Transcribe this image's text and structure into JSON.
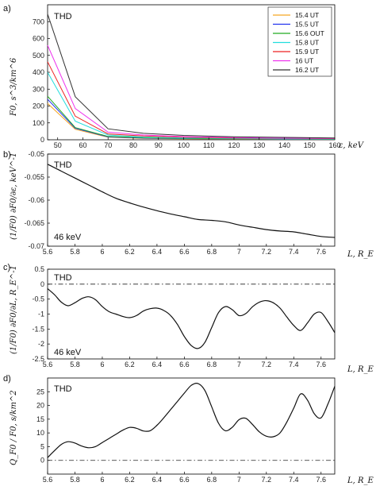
{
  "chart_data": [
    {
      "panel_label": "a)",
      "type": "line",
      "annotation": "THD",
      "xlabel": "ε, keV",
      "ylabel": "F0, s^3/km^6",
      "xlim": [
        46,
        160
      ],
      "ylim": [
        0,
        800
      ],
      "x_ticks": [
        50,
        60,
        70,
        80,
        90,
        100,
        110,
        120,
        130,
        140,
        150,
        160
      ],
      "y_ticks": [
        0,
        100,
        200,
        300,
        400,
        500,
        600,
        700
      ],
      "x": [
        46,
        57,
        70,
        84,
        100,
        120,
        140,
        160
      ],
      "series": [
        {
          "name": "15.4 UT",
          "color": "#f5a623",
          "values": [
            215,
            62,
            15,
            8,
            5,
            4,
            3,
            3
          ]
        },
        {
          "name": "15.5 UT",
          "color": "#2233ee",
          "values": [
            240,
            68,
            17,
            10,
            7,
            5,
            4,
            4
          ]
        },
        {
          "name": "15.6 OUT",
          "color": "#22aa22",
          "values": [
            258,
            72,
            20,
            12,
            8,
            6,
            5,
            4
          ]
        },
        {
          "name": "15.8 UT",
          "color": "#22dddd",
          "values": [
            400,
            110,
            28,
            16,
            11,
            8,
            6,
            5
          ]
        },
        {
          "name": "15.9 UT",
          "color": "#ee2222",
          "values": [
            462,
            140,
            35,
            22,
            15,
            11,
            9,
            7
          ]
        },
        {
          "name": "16 UT",
          "color": "#ee33ee",
          "values": [
            560,
            185,
            45,
            28,
            19,
            13,
            10,
            8
          ]
        },
        {
          "name": "16.2 UT",
          "color": "#333333",
          "values": [
            745,
            255,
            65,
            38,
            26,
            18,
            14,
            11
          ]
        }
      ],
      "legend": "top-right"
    },
    {
      "panel_label": "b)",
      "type": "line",
      "annotation": "THD",
      "annotation2": "46 keV",
      "xlabel": "L, R_E",
      "ylabel": "(1/F0) ∂F0/∂ε, keV^-1",
      "xlim": [
        5.6,
        7.7
      ],
      "ylim": [
        -0.07,
        -0.05
      ],
      "x_ticks": [
        5.6,
        5.8,
        6.0,
        6.2,
        6.4,
        6.6,
        6.8,
        7.0,
        7.2,
        7.4,
        7.6
      ],
      "x_tick_labels": [
        "5.6",
        "5.8",
        "6",
        "6.2",
        "6.4",
        "6.6",
        "6.8",
        "7",
        "7.2",
        "7.4",
        "7.6"
      ],
      "y_ticks": [
        -0.05,
        -0.055,
        -0.06,
        -0.065,
        -0.07
      ],
      "y_tick_labels": [
        "-0.05",
        "-0.055",
        "-0.06",
        "-0.065",
        "-0.07"
      ],
      "x": [
        5.6,
        5.7,
        5.8,
        5.9,
        6.0,
        6.1,
        6.2,
        6.3,
        6.4,
        6.5,
        6.6,
        6.7,
        6.8,
        6.9,
        7.0,
        7.1,
        7.2,
        7.3,
        7.4,
        7.5,
        7.6,
        7.7
      ],
      "values": [
        -0.0522,
        -0.0537,
        -0.0552,
        -0.0567,
        -0.0582,
        -0.0596,
        -0.0606,
        -0.0615,
        -0.0623,
        -0.063,
        -0.0636,
        -0.0642,
        -0.0644,
        -0.0647,
        -0.0654,
        -0.0659,
        -0.0664,
        -0.0667,
        -0.0669,
        -0.0674,
        -0.0679,
        -0.0681
      ]
    },
    {
      "panel_label": "c)",
      "type": "line",
      "annotation": "THD",
      "annotation2": "46 keV",
      "xlabel": "L, R_E",
      "ylabel": "(1/F0) ∂F0/∂L, R_E^-1",
      "xlim": [
        5.6,
        7.7
      ],
      "ylim": [
        -2.5,
        0.5
      ],
      "x_ticks": [
        5.6,
        5.8,
        6.0,
        6.2,
        6.4,
        6.6,
        6.8,
        7.0,
        7.2,
        7.4,
        7.6
      ],
      "x_tick_labels": [
        "5.6",
        "5.8",
        "6",
        "6.2",
        "6.4",
        "6.6",
        "6.8",
        "7",
        "7.2",
        "7.4",
        "7.6"
      ],
      "y_ticks": [
        0.5,
        0,
        -0.5,
        -1,
        -1.5,
        -2,
        -2.5
      ],
      "y_tick_labels": [
        "0.5",
        "0",
        "-0.5",
        "-1",
        "-1.5",
        "-2",
        "-2.5"
      ],
      "reference_line": 0,
      "x": [
        5.6,
        5.65,
        5.7,
        5.75,
        5.8,
        5.85,
        5.9,
        5.95,
        6.0,
        6.05,
        6.1,
        6.15,
        6.2,
        6.25,
        6.3,
        6.35,
        6.4,
        6.45,
        6.5,
        6.55,
        6.6,
        6.65,
        6.7,
        6.75,
        6.8,
        6.85,
        6.9,
        6.95,
        7.0,
        7.05,
        7.1,
        7.15,
        7.2,
        7.25,
        7.3,
        7.35,
        7.4,
        7.45,
        7.5,
        7.55,
        7.6,
        7.65,
        7.7
      ],
      "values": [
        -0.15,
        -0.35,
        -0.6,
        -0.72,
        -0.62,
        -0.48,
        -0.42,
        -0.52,
        -0.75,
        -0.92,
        -1.0,
        -1.08,
        -1.12,
        -1.05,
        -0.9,
        -0.82,
        -0.8,
        -0.88,
        -1.05,
        -1.35,
        -1.75,
        -2.05,
        -2.15,
        -1.95,
        -1.45,
        -0.95,
        -0.75,
        -0.85,
        -1.05,
        -0.98,
        -0.75,
        -0.6,
        -0.55,
        -0.62,
        -0.8,
        -1.1,
        -1.38,
        -1.55,
        -1.3,
        -1.0,
        -0.95,
        -1.25,
        -1.62
      ]
    },
    {
      "panel_label": "d)",
      "type": "line",
      "annotation": "THD",
      "xlabel": "L, R_E",
      "ylabel": "Q_F0 / F0, s/km^2",
      "xlim": [
        5.6,
        7.7
      ],
      "ylim": [
        -5,
        30
      ],
      "x_ticks": [
        5.6,
        5.8,
        6.0,
        6.2,
        6.4,
        6.6,
        6.8,
        7.0,
        7.2,
        7.4,
        7.6
      ],
      "x_tick_labels": [
        "5.6",
        "5.8",
        "6",
        "6.2",
        "6.4",
        "6.6",
        "6.8",
        "7",
        "7.2",
        "7.4",
        "7.6"
      ],
      "y_ticks": [
        0,
        5,
        10,
        15,
        20,
        25
      ],
      "y_tick_labels": [
        "0",
        "5",
        "10",
        "15",
        "20",
        "25"
      ],
      "reference_line": 0,
      "x": [
        5.6,
        5.65,
        5.7,
        5.75,
        5.8,
        5.85,
        5.9,
        5.95,
        6.0,
        6.05,
        6.1,
        6.15,
        6.2,
        6.25,
        6.3,
        6.35,
        6.4,
        6.45,
        6.5,
        6.55,
        6.6,
        6.65,
        6.7,
        6.75,
        6.8,
        6.85,
        6.9,
        6.95,
        7.0,
        7.05,
        7.1,
        7.15,
        7.2,
        7.25,
        7.3,
        7.35,
        7.4,
        7.45,
        7.5,
        7.55,
        7.6,
        7.65,
        7.7
      ],
      "values": [
        1.0,
        3.5,
        5.8,
        6.8,
        6.3,
        5.2,
        4.6,
        5.0,
        6.5,
        8.0,
        9.5,
        11.0,
        12.0,
        11.7,
        10.7,
        10.8,
        12.8,
        15.5,
        18.5,
        21.5,
        24.5,
        27.3,
        28.0,
        25.5,
        19.5,
        13.5,
        10.8,
        12.0,
        14.8,
        15.3,
        13.0,
        10.3,
        8.8,
        8.6,
        10.0,
        14.0,
        19.0,
        24.2,
        22.0,
        17.0,
        15.5,
        20.5,
        27.0
      ]
    }
  ]
}
